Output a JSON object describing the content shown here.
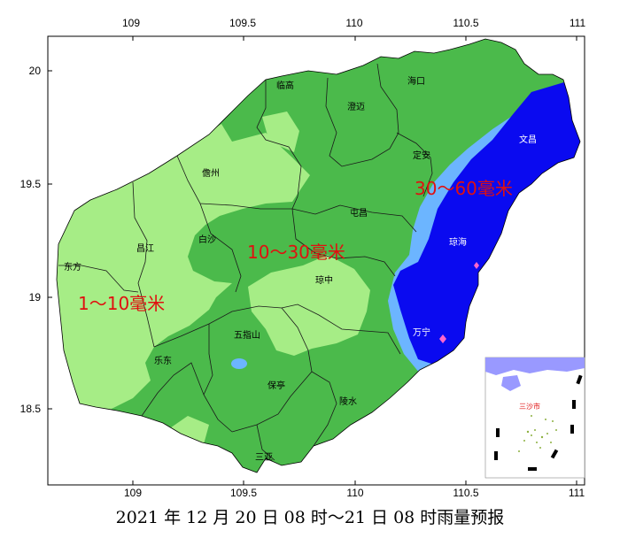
{
  "caption": "2021 年 12 月 20 日 08 时～21 日 08 时雨量预报",
  "axes": {
    "x_ticks": [
      "109",
      "109.5",
      "110",
      "110.5",
      "111"
    ],
    "y_ticks": [
      "20",
      "19.5",
      "19",
      "18.5"
    ],
    "x_range": [
      108.6,
      111.0
    ],
    "y_range": [
      18.2,
      20.25
    ]
  },
  "zones": [
    {
      "label": "1～10毫米",
      "range_mm": [
        1,
        10
      ],
      "color": "#a6ed86"
    },
    {
      "label": "10～30毫米",
      "range_mm": [
        10,
        30
      ],
      "color": "#4bba4b"
    },
    {
      "label": "30～60毫米",
      "range_mm": [
        30,
        60
      ],
      "color": "#0a0af0"
    }
  ],
  "colors": {
    "light_blue": "#6cb5ff",
    "inset_sea": "#9999ff"
  },
  "cities": [
    "临高",
    "海口",
    "澄迈",
    "定安",
    "文昌",
    "儋州",
    "屯昌",
    "琼海",
    "昌江",
    "白沙",
    "琼中",
    "东方",
    "五指山",
    "万宁",
    "乐东",
    "保亭",
    "陵水",
    "三亚"
  ],
  "inset": {
    "label": "三沙市"
  }
}
